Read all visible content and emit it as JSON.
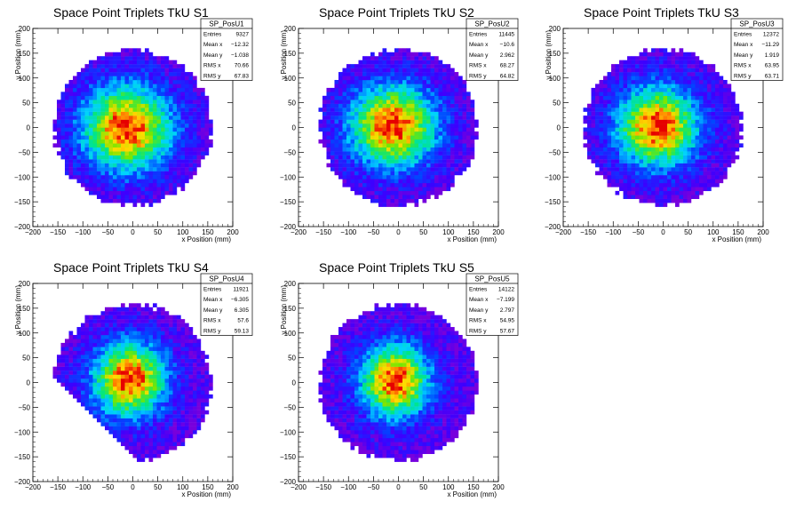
{
  "chart_data": [
    {
      "type": "heatmap",
      "title": "Space Point Triplets TkU S1",
      "xlabel": "x Position (mm)",
      "ylabel": "y Position (mm)",
      "xlim": [
        -200,
        200
      ],
      "ylim": [
        -200,
        200
      ],
      "x_ticks": [
        "−200",
        "−150",
        "−100",
        "−50",
        "0",
        "50",
        "100",
        "150",
        "200"
      ],
      "y_ticks": [
        "−200",
        "−150",
        "−100",
        "−50",
        "0",
        "50",
        "100",
        "150",
        "200"
      ],
      "stats": {
        "name": "SP_PosU1",
        "rows": [
          {
            "label": "Entries",
            "value": "9327"
          },
          {
            "label": "Mean x",
            "value": "−12.32"
          },
          {
            "label": "Mean y",
            "value": "−1.038"
          },
          {
            "label": "RMS x",
            "value": "70.66"
          },
          {
            "label": "RMS y",
            "value": "67.83"
          }
        ]
      }
    },
    {
      "type": "heatmap",
      "title": "Space Point Triplets TkU S2",
      "xlabel": "x Position (mm)",
      "ylabel": "y Position (mm)",
      "xlim": [
        -200,
        200
      ],
      "ylim": [
        -200,
        200
      ],
      "x_ticks": [
        "−200",
        "−150",
        "−100",
        "−50",
        "0",
        "50",
        "100",
        "150",
        "200"
      ],
      "y_ticks": [
        "−200",
        "−150",
        "−100",
        "−50",
        "0",
        "50",
        "100",
        "150",
        "200"
      ],
      "stats": {
        "name": "SP_PosU2",
        "rows": [
          {
            "label": "Entries",
            "value": "11445"
          },
          {
            "label": "Mean x",
            "value": "−10.6"
          },
          {
            "label": "Mean y",
            "value": "2.962"
          },
          {
            "label": "RMS x",
            "value": "68.27"
          },
          {
            "label": "RMS y",
            "value": "64.82"
          }
        ]
      }
    },
    {
      "type": "heatmap",
      "title": "Space Point Triplets TkU S3",
      "xlabel": "x Position (mm)",
      "ylabel": "y Position (mm)",
      "xlim": [
        -200,
        200
      ],
      "ylim": [
        -200,
        200
      ],
      "x_ticks": [
        "−200",
        "−150",
        "−100",
        "−50",
        "0",
        "50",
        "100",
        "150",
        "200"
      ],
      "y_ticks": [
        "−200",
        "−150",
        "−100",
        "−50",
        "0",
        "50",
        "100",
        "150",
        "200"
      ],
      "stats": {
        "name": "SP_PosU3",
        "rows": [
          {
            "label": "Entries",
            "value": "12372"
          },
          {
            "label": "Mean x",
            "value": "−11.29"
          },
          {
            "label": "Mean y",
            "value": "1.919"
          },
          {
            "label": "RMS x",
            "value": "63.95"
          },
          {
            "label": "RMS y",
            "value": "63.71"
          }
        ]
      }
    },
    {
      "type": "heatmap",
      "title": "Space Point Triplets TkU S4",
      "xlabel": "x Position (mm)",
      "ylabel": "y Position (mm)",
      "xlim": [
        -200,
        200
      ],
      "ylim": [
        -200,
        200
      ],
      "x_ticks": [
        "−200",
        "−150",
        "−100",
        "−50",
        "0",
        "50",
        "100",
        "150",
        "200"
      ],
      "y_ticks": [
        "−200",
        "−150",
        "−100",
        "−50",
        "0",
        "50",
        "100",
        "150",
        "200"
      ],
      "stats": {
        "name": "SP_PosU4",
        "rows": [
          {
            "label": "Entries",
            "value": "11921"
          },
          {
            "label": "Mean x",
            "value": "−6.305"
          },
          {
            "label": "Mean y",
            "value": "6.305"
          },
          {
            "label": "RMS x",
            "value": "57.6"
          },
          {
            "label": "RMS y",
            "value": "59.13"
          }
        ]
      }
    },
    {
      "type": "heatmap",
      "title": "Space Point Triplets TkU S5",
      "xlabel": "x Position (mm)",
      "ylabel": "y Position (mm)",
      "xlim": [
        -200,
        200
      ],
      "ylim": [
        -200,
        200
      ],
      "x_ticks": [
        "−200",
        "−150",
        "−100",
        "−50",
        "0",
        "50",
        "100",
        "150",
        "200"
      ],
      "y_ticks": [
        "−200",
        "−150",
        "−100",
        "−50",
        "0",
        "50",
        "100",
        "150",
        "200"
      ],
      "stats": {
        "name": "SP_PosU5",
        "rows": [
          {
            "label": "Entries",
            "value": "14122"
          },
          {
            "label": "Mean x",
            "value": "−7.199"
          },
          {
            "label": "Mean y",
            "value": "2.797"
          },
          {
            "label": "RMS x",
            "value": "54.95"
          },
          {
            "label": "RMS y",
            "value": "57.67"
          }
        ]
      }
    }
  ]
}
